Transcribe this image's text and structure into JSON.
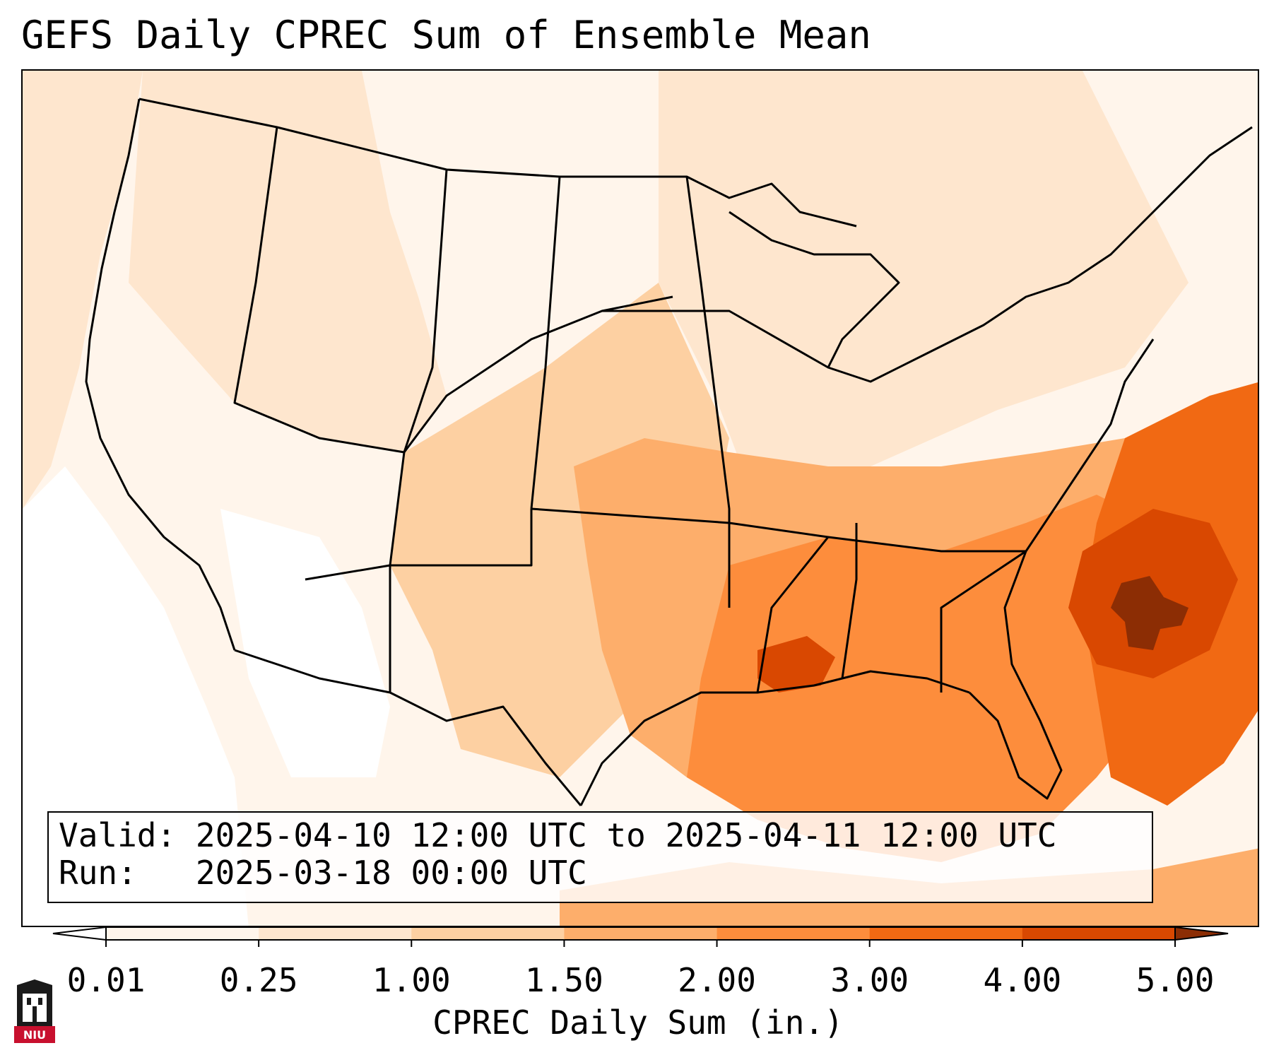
{
  "title": "GEFS Daily CPREC Sum of Ensemble Mean",
  "info": {
    "valid_label": "Valid:",
    "valid_value": "2025-04-10 12:00 UTC to 2025-04-11 12:00 UTC",
    "run_label": "Run:",
    "run_value": "2025-03-18 00:00 UTC"
  },
  "colorbar": {
    "label": "CPREC Daily Sum (in.)",
    "ticks": [
      "0.01",
      "0.25",
      "1.00",
      "1.50",
      "2.00",
      "3.00",
      "4.00",
      "5.00"
    ],
    "colors": [
      "#fff5eb",
      "#fee6ce",
      "#fdd0a2",
      "#fdae6b",
      "#fd8d3c",
      "#f16913",
      "#d94801",
      "#8c2d04"
    ],
    "extend": "both"
  },
  "logo": {
    "text": "NIU",
    "color": "#c8102e"
  }
}
